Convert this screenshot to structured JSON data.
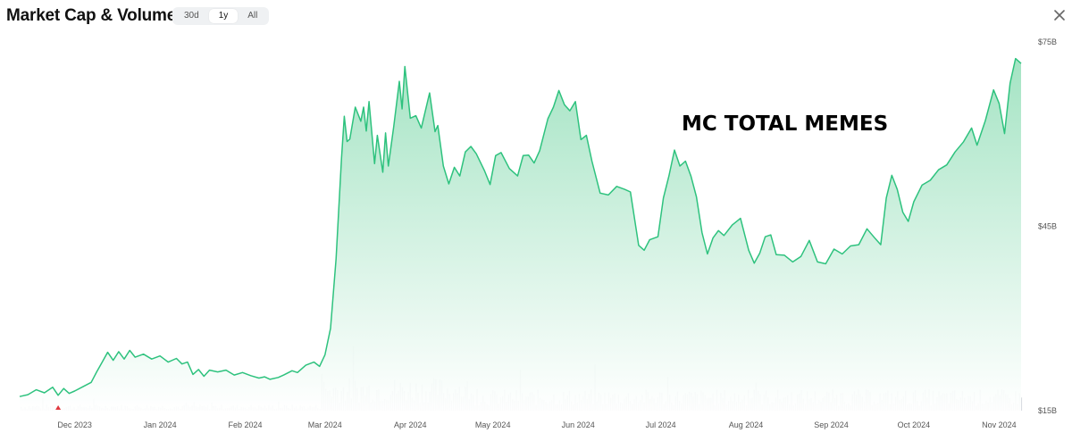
{
  "header": {
    "title": "Market Cap & Volume",
    "ranges": [
      "30d",
      "1y",
      "All"
    ],
    "active_range": "1y",
    "close_icon": "close-icon"
  },
  "overlay_text": "MC TOTAL MEMES",
  "colors": {
    "line": "#2ec27e",
    "fill_top": "#9fe2c0",
    "fill_bottom": "#ffffff",
    "volume": "#d9dde2",
    "axis_text": "#555555",
    "red_marker": "#e0383e"
  },
  "chart_data": {
    "type": "area",
    "title": "",
    "xlabel": "",
    "ylabel": "",
    "x_ticks": [
      "Dec 2023",
      "Jan 2024",
      "Feb 2024",
      "Mar 2024",
      "Apr 2024",
      "May 2024",
      "Jun 2024",
      "Jul 2024",
      "Aug 2024",
      "Sep 2024",
      "Oct 2024",
      "Nov 2024"
    ],
    "y_ticks": [
      "$15B",
      "$45B",
      "$75B"
    ],
    "y_tick_values": [
      15,
      45,
      75
    ],
    "ylim": [
      15,
      75
    ],
    "xlim": [
      "2023-11-11",
      "2024-11-09"
    ],
    "grid": false,
    "series": [
      {
        "values": [
          [
            "2023-11-11",
            17.3
          ],
          [
            "2023-11-14",
            17.6
          ],
          [
            "2023-11-17",
            18.4
          ],
          [
            "2023-11-20",
            17.9
          ],
          [
            "2023-11-23",
            18.8
          ],
          [
            "2023-11-25",
            17.5
          ],
          [
            "2023-11-27",
            18.6
          ],
          [
            "2023-11-29",
            17.8
          ],
          [
            "2023-12-01",
            18.2
          ],
          [
            "2023-12-04",
            18.9
          ],
          [
            "2023-12-07",
            19.6
          ],
          [
            "2023-12-09",
            21.3
          ],
          [
            "2023-12-11",
            22.9
          ],
          [
            "2023-12-13",
            24.5
          ],
          [
            "2023-12-15",
            23.2
          ],
          [
            "2023-12-17",
            24.6
          ],
          [
            "2023-12-19",
            23.4
          ],
          [
            "2023-12-21",
            24.8
          ],
          [
            "2023-12-23",
            23.7
          ],
          [
            "2023-12-26",
            24.2
          ],
          [
            "2023-12-29",
            23.4
          ],
          [
            "2024-01-01",
            23.9
          ],
          [
            "2024-01-04",
            22.9
          ],
          [
            "2024-01-07",
            23.5
          ],
          [
            "2024-01-09",
            22.6
          ],
          [
            "2024-01-11",
            22.9
          ],
          [
            "2024-01-13",
            20.9
          ],
          [
            "2024-01-15",
            21.7
          ],
          [
            "2024-01-17",
            20.6
          ],
          [
            "2024-01-19",
            21.6
          ],
          [
            "2024-01-22",
            21.3
          ],
          [
            "2024-01-25",
            21.6
          ],
          [
            "2024-01-28",
            20.8
          ],
          [
            "2024-01-31",
            21.2
          ],
          [
            "2024-02-03",
            20.7
          ],
          [
            "2024-02-06",
            20.3
          ],
          [
            "2024-02-08",
            20.5
          ],
          [
            "2024-02-10",
            20.1
          ],
          [
            "2024-02-13",
            20.4
          ],
          [
            "2024-02-15",
            20.8
          ],
          [
            "2024-02-18",
            21.5
          ],
          [
            "2024-02-20",
            21.2
          ],
          [
            "2024-02-23",
            22.4
          ],
          [
            "2024-02-26",
            22.9
          ],
          [
            "2024-02-28",
            22.2
          ],
          [
            "2024-03-01",
            24.1
          ],
          [
            "2024-03-03",
            28.4
          ],
          [
            "2024-03-05",
            39.7
          ],
          [
            "2024-03-07",
            56.1
          ],
          [
            "2024-03-08",
            62.9
          ],
          [
            "2024-03-09",
            58.8
          ],
          [
            "2024-03-10",
            59.2
          ],
          [
            "2024-03-12",
            64.4
          ],
          [
            "2024-03-14",
            62.1
          ],
          [
            "2024-03-15",
            64.4
          ],
          [
            "2024-03-16",
            60.5
          ],
          [
            "2024-03-17",
            65.3
          ],
          [
            "2024-03-19",
            55.2
          ],
          [
            "2024-03-20",
            59.8
          ],
          [
            "2024-03-22",
            53.8
          ],
          [
            "2024-03-23",
            60.2
          ],
          [
            "2024-03-24",
            54.8
          ],
          [
            "2024-03-26",
            61.3
          ],
          [
            "2024-03-28",
            68.6
          ],
          [
            "2024-03-29",
            64.1
          ],
          [
            "2024-03-30",
            71.0
          ],
          [
            "2024-04-01",
            62.6
          ],
          [
            "2024-04-03",
            63.0
          ],
          [
            "2024-04-05",
            61.0
          ],
          [
            "2024-04-08",
            66.7
          ],
          [
            "2024-04-10",
            60.4
          ],
          [
            "2024-04-11",
            61.4
          ],
          [
            "2024-04-13",
            54.8
          ],
          [
            "2024-04-15",
            51.9
          ],
          [
            "2024-04-17",
            54.6
          ],
          [
            "2024-04-19",
            53.2
          ],
          [
            "2024-04-21",
            57.1
          ],
          [
            "2024-04-23",
            58.0
          ],
          [
            "2024-04-25",
            56.8
          ],
          [
            "2024-04-28",
            54.0
          ],
          [
            "2024-04-30",
            51.8
          ],
          [
            "2024-05-02",
            56.5
          ],
          [
            "2024-05-04",
            57.0
          ],
          [
            "2024-05-07",
            54.4
          ],
          [
            "2024-05-10",
            53.2
          ],
          [
            "2024-05-12",
            56.5
          ],
          [
            "2024-05-14",
            56.6
          ],
          [
            "2024-05-16",
            55.3
          ],
          [
            "2024-05-18",
            57.3
          ],
          [
            "2024-05-21",
            62.5
          ],
          [
            "2024-05-23",
            64.4
          ],
          [
            "2024-05-25",
            67.1
          ],
          [
            "2024-05-27",
            64.8
          ],
          [
            "2024-05-29",
            63.8
          ],
          [
            "2024-05-31",
            65.3
          ],
          [
            "2024-06-02",
            59.1
          ],
          [
            "2024-06-04",
            59.8
          ],
          [
            "2024-06-06",
            55.6
          ],
          [
            "2024-06-09",
            50.4
          ],
          [
            "2024-06-12",
            50.1
          ],
          [
            "2024-06-15",
            51.5
          ],
          [
            "2024-06-18",
            51.0
          ],
          [
            "2024-06-20",
            50.6
          ],
          [
            "2024-06-23",
            41.9
          ],
          [
            "2024-06-25",
            41.1
          ],
          [
            "2024-06-27",
            42.8
          ],
          [
            "2024-06-30",
            43.3
          ],
          [
            "2024-07-02",
            49.6
          ],
          [
            "2024-07-04",
            53.2
          ],
          [
            "2024-07-06",
            57.4
          ],
          [
            "2024-07-08",
            54.8
          ],
          [
            "2024-07-10",
            55.6
          ],
          [
            "2024-07-12",
            53.2
          ],
          [
            "2024-07-14",
            49.8
          ],
          [
            "2024-07-16",
            44.0
          ],
          [
            "2024-07-18",
            40.5
          ],
          [
            "2024-07-20",
            43.1
          ],
          [
            "2024-07-22",
            44.3
          ],
          [
            "2024-07-24",
            43.5
          ],
          [
            "2024-07-27",
            45.2
          ],
          [
            "2024-07-30",
            46.3
          ],
          [
            "2024-08-02",
            41.1
          ],
          [
            "2024-08-04",
            39.0
          ],
          [
            "2024-08-06",
            40.6
          ],
          [
            "2024-08-08",
            43.3
          ],
          [
            "2024-08-10",
            43.6
          ],
          [
            "2024-08-12",
            40.4
          ],
          [
            "2024-08-15",
            40.3
          ],
          [
            "2024-08-18",
            39.2
          ],
          [
            "2024-08-21",
            40.1
          ],
          [
            "2024-08-24",
            42.7
          ],
          [
            "2024-08-27",
            39.2
          ],
          [
            "2024-08-30",
            38.9
          ],
          [
            "2024-09-02",
            41.3
          ],
          [
            "2024-09-05",
            40.5
          ],
          [
            "2024-09-08",
            41.8
          ],
          [
            "2024-09-11",
            42.0
          ],
          [
            "2024-09-14",
            44.6
          ],
          [
            "2024-09-17",
            43.0
          ],
          [
            "2024-09-19",
            42.0
          ],
          [
            "2024-09-21",
            49.6
          ],
          [
            "2024-09-23",
            53.3
          ],
          [
            "2024-09-25",
            51.0
          ],
          [
            "2024-09-27",
            47.3
          ],
          [
            "2024-09-29",
            45.8
          ],
          [
            "2024-10-01",
            49.0
          ],
          [
            "2024-10-04",
            51.7
          ],
          [
            "2024-10-07",
            52.5
          ],
          [
            "2024-10-10",
            54.2
          ],
          [
            "2024-10-13",
            55.0
          ],
          [
            "2024-10-16",
            57.1
          ],
          [
            "2024-10-19",
            58.7
          ],
          [
            "2024-10-22",
            61.0
          ],
          [
            "2024-10-24",
            58.2
          ],
          [
            "2024-10-27",
            62.2
          ],
          [
            "2024-10-30",
            67.2
          ],
          [
            "2024-11-01",
            65.0
          ],
          [
            "2024-11-03",
            60.1
          ],
          [
            "2024-11-05",
            68.3
          ],
          [
            "2024-11-07",
            72.3
          ],
          [
            "2024-11-09",
            71.5
          ]
        ]
      }
    ],
    "volume_bars": true,
    "red_marker_x": "2023-11-25"
  }
}
